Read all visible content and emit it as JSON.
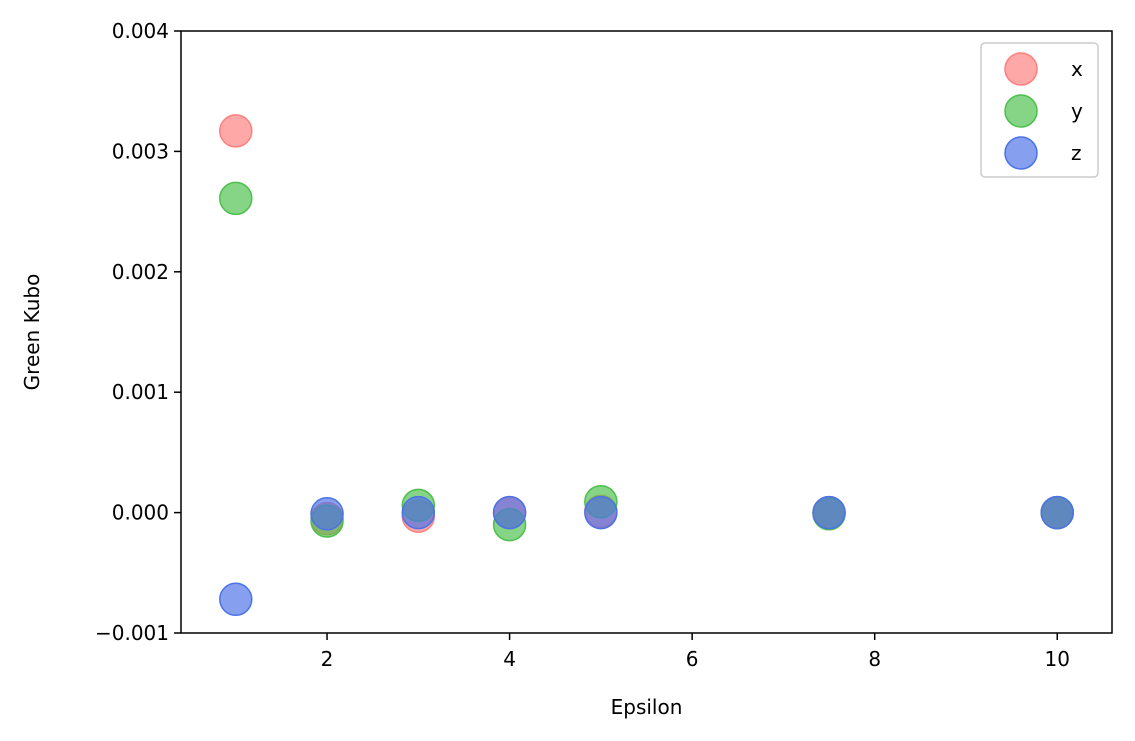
{
  "chart_data": {
    "type": "scatter",
    "title": "",
    "xlabel": "Epsilon",
    "ylabel": "Green Kubo",
    "xlim": [
      0.4,
      10.6
    ],
    "ylim": [
      -0.001,
      0.004
    ],
    "grid": false,
    "legend_position": "top-right",
    "xticks": [
      2,
      4,
      6,
      8,
      10
    ],
    "xtick_labels": [
      "2",
      "4",
      "6",
      "8",
      "10"
    ],
    "yticks": [
      -0.001,
      0,
      0.001,
      0.002,
      0.003,
      0.004
    ],
    "ytick_labels": [
      "−0.001",
      "0.000",
      "0.001",
      "0.002",
      "0.003",
      "0.004"
    ],
    "x": [
      1,
      2,
      3,
      4,
      5,
      7.5,
      10
    ],
    "series": [
      {
        "name": "x",
        "color": "#ff7f7f",
        "values": [
          0.00317,
          -5e-05,
          -3e-05,
          0.0,
          1e-05,
          0.0,
          0.0
        ]
      },
      {
        "name": "y",
        "color": "#4cc04c",
        "values": [
          0.00261,
          -7e-05,
          6e-05,
          -0.0001,
          9e-05,
          -1e-05,
          0.0
        ]
      },
      {
        "name": "z",
        "color": "#4c72e8",
        "values": [
          -0.00072,
          -1e-05,
          0.0,
          0.0,
          0.0,
          0.0,
          0.0
        ]
      }
    ]
  }
}
